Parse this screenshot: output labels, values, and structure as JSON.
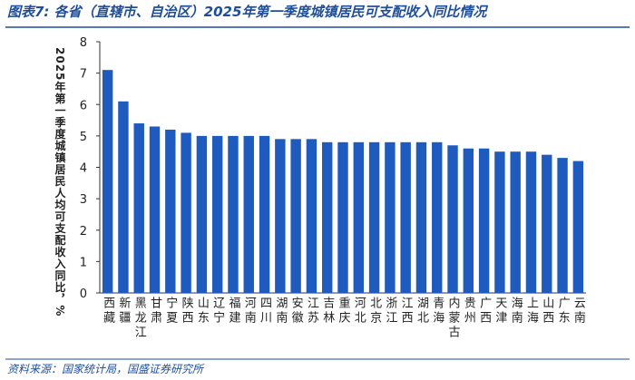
{
  "chart_data": {
    "type": "bar",
    "title": "图表7: 各省（直辖市、自治区）2025年第一季度城镇居民可支配收入同比情况",
    "y_label": "2025年第一季度城镇居民人均可支配收入同比，%",
    "source": "资料来源：国家统计局，国盛证券研究所",
    "categories": [
      "西藏",
      "新疆",
      "黑龙江",
      "甘肃",
      "宁夏",
      "陕西",
      "山东",
      "辽宁",
      "福建",
      "河南",
      "四川",
      "湖南",
      "安徽",
      "江苏",
      "吉林",
      "重庆",
      "河北",
      "北京",
      "浙江",
      "江西",
      "湖北",
      "青海",
      "内蒙古",
      "贵州",
      "广西",
      "天津",
      "海南",
      "上海",
      "山西",
      "广东",
      "云南"
    ],
    "values": [
      7.1,
      6.1,
      5.4,
      5.3,
      5.2,
      5.1,
      5.0,
      5.0,
      5.0,
      5.0,
      5.0,
      4.9,
      4.9,
      4.9,
      4.8,
      4.8,
      4.8,
      4.8,
      4.8,
      4.8,
      4.8,
      4.8,
      4.7,
      4.6,
      4.6,
      4.5,
      4.5,
      4.5,
      4.4,
      4.3,
      4.2
    ],
    "color": "#1f5bbf",
    "ylim": [
      0,
      8
    ],
    "yticks": [
      0,
      1,
      2,
      3,
      4,
      5,
      6,
      7,
      8
    ],
    "grid": false
  }
}
